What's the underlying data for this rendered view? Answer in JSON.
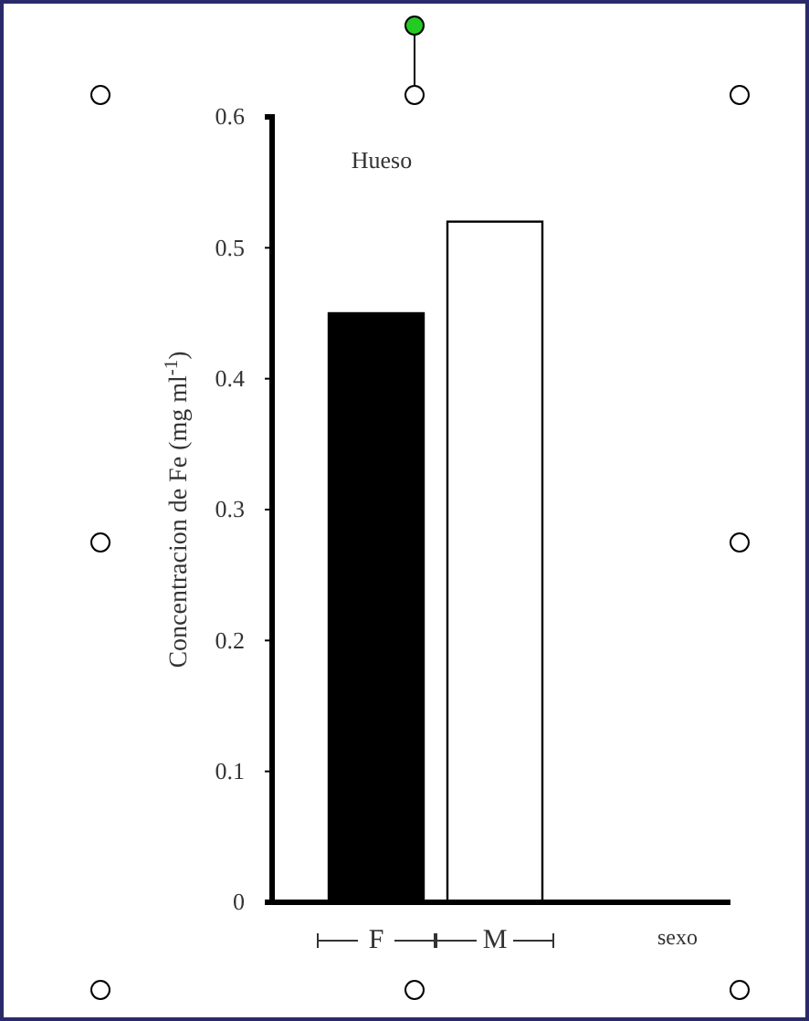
{
  "chart_data": {
    "type": "bar",
    "title": "Hueso",
    "xlabel": "sexo",
    "ylabel": "Concentracion de Fe (mg ml$^{-1}$)",
    "categories": [
      "F",
      "M"
    ],
    "values": [
      0.45,
      0.52
    ],
    "colors": [
      "#000000",
      "#ffffff"
    ],
    "ylim": [
      0,
      0.6
    ],
    "yticks": [
      0,
      0.1,
      0.2,
      0.3,
      0.4,
      0.5,
      0.6
    ],
    "grid": false
  }
}
